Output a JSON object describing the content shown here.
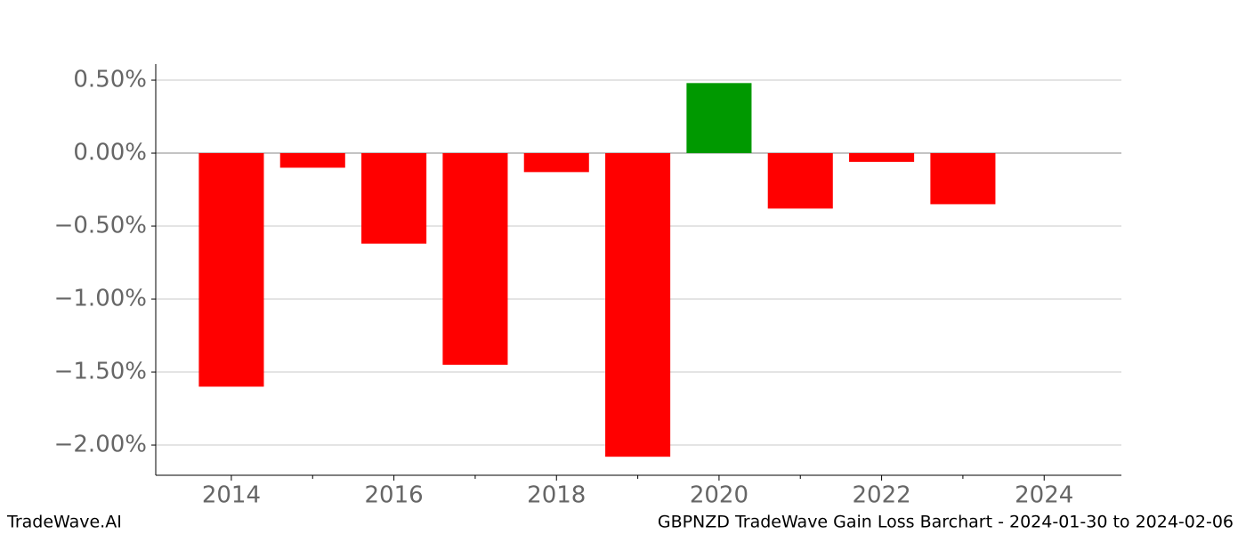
{
  "chart_data": {
    "type": "bar",
    "title": "GBPNZD TradeWave Gain Loss Barchart - 2024-01-30 to 2024-02-06",
    "source": "TradeWave.AI",
    "x": [
      2014,
      2015,
      2016,
      2017,
      2018,
      2019,
      2020,
      2021,
      2022,
      2023
    ],
    "values": [
      -1.6,
      -0.1,
      -0.62,
      -1.45,
      -0.13,
      -2.08,
      0.48,
      -0.38,
      -0.06,
      -0.35
    ],
    "positive_color": "#009900",
    "negative_color": "#ff0000",
    "xlim": [
      2013.07,
      2024.95
    ],
    "xticks": [
      2014,
      2016,
      2018,
      2020,
      2022,
      2024
    ],
    "xminorticks": [
      2015,
      2017,
      2019,
      2021,
      2023
    ],
    "ylim": [
      -2.207,
      0.61
    ],
    "yticks": [
      {
        "value": -2.0,
        "label": "−2.00%"
      },
      {
        "value": -1.5,
        "label": "−1.50%"
      },
      {
        "value": -1.0,
        "label": "−1.00%"
      },
      {
        "value": -0.5,
        "label": "−0.50%"
      },
      {
        "value": 0.0,
        "label": "0.00%"
      },
      {
        "value": 0.5,
        "label": "0.50%"
      }
    ],
    "grid": true
  }
}
